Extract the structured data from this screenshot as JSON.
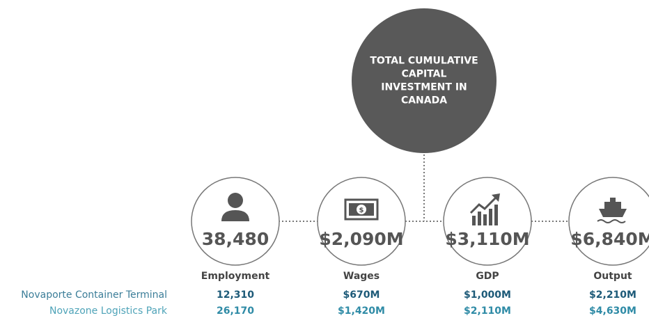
{
  "center": {
    "lines": [
      "TOTAL CUMULATIVE",
      "CAPITAL",
      "INVESTMENT IN",
      "CANADA"
    ]
  },
  "rows": [
    "Novaporte Container Terminal",
    "Novazone Logistics Park"
  ],
  "metrics": [
    {
      "label": "Employment",
      "total": "38,480",
      "values": [
        "12,310",
        "26,170"
      ]
    },
    {
      "label": "Wages",
      "total": "$2,090M",
      "values": [
        "$670M",
        "$1,420M"
      ]
    },
    {
      "label": "GDP",
      "total": "$3,110M",
      "values": [
        "$1,000M",
        "$2,110M"
      ]
    },
    {
      "label": "Output",
      "total": "$6,840M",
      "values": [
        "$2,210M",
        "$4,630M"
      ]
    }
  ]
}
